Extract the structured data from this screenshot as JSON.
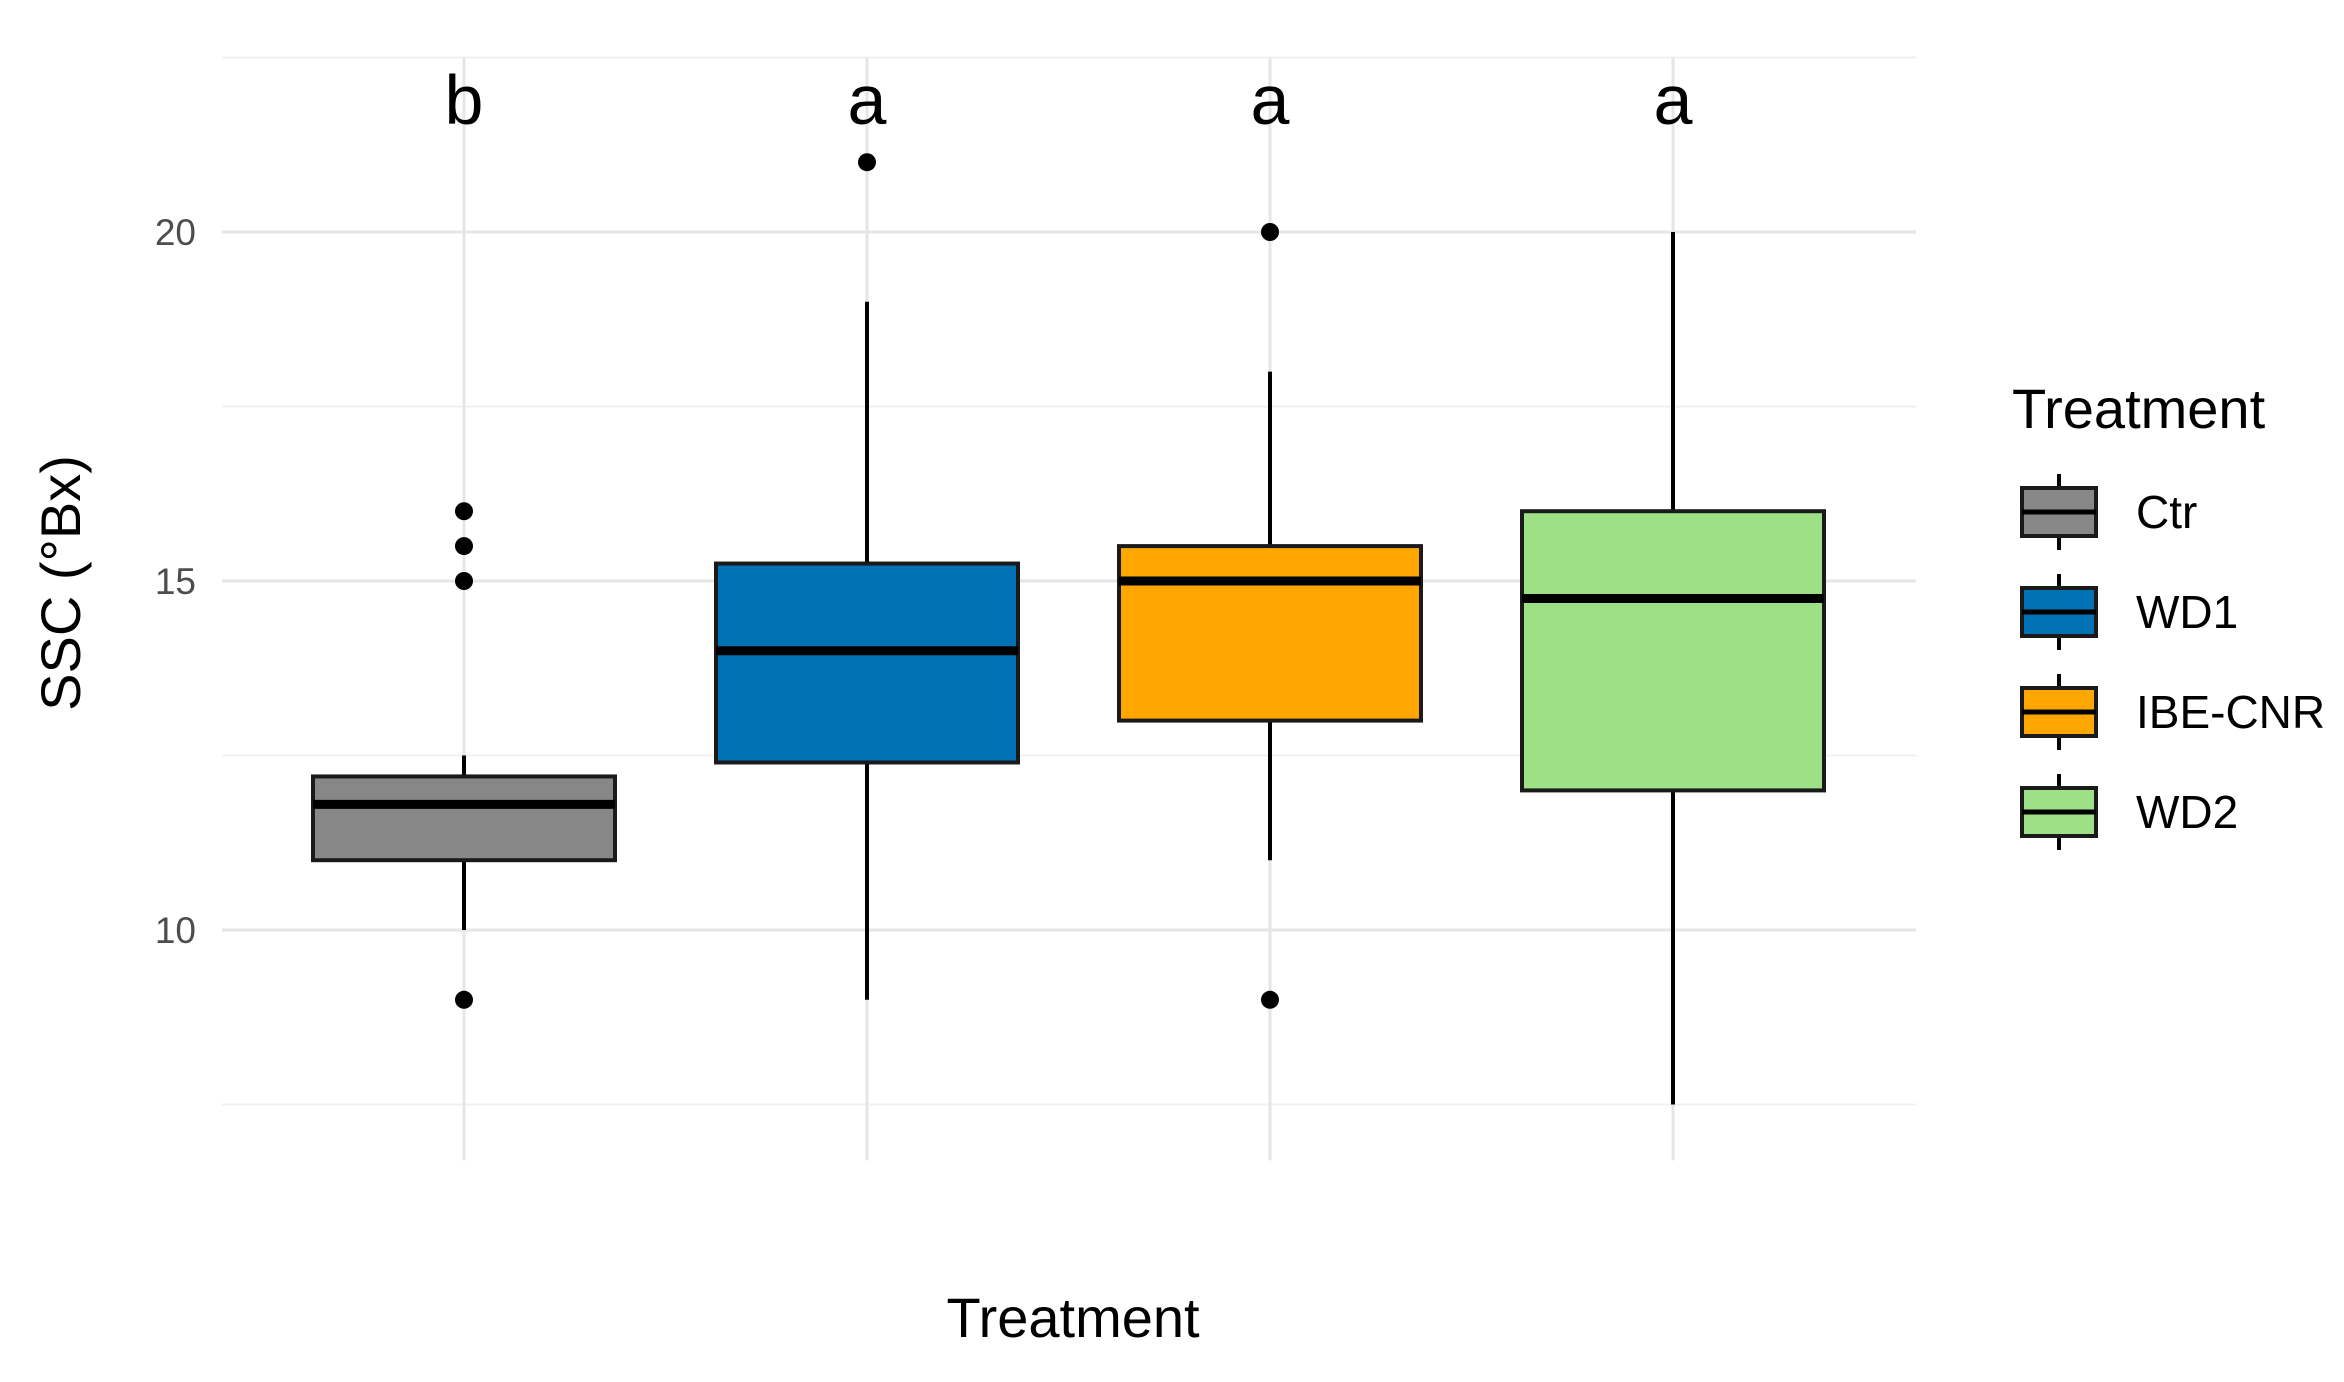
{
  "chart_data": {
    "type": "box",
    "xlabel": "Treatment",
    "ylabel": "SSC (°Bx)",
    "ylim": [
      7,
      22.5
    ],
    "yticks": [
      10,
      15,
      20
    ],
    "grid": true,
    "legend": {
      "title": "Treatment",
      "position": "right",
      "entries": [
        "Ctr",
        "WD1",
        "IBE-CNR",
        "WD2"
      ]
    },
    "categories": [
      "Ctr",
      "WD1",
      "IBE-CNR",
      "WD2"
    ],
    "series": [
      {
        "name": "Ctr",
        "color": "#878787",
        "q1": 11.0,
        "median": 11.8,
        "q3": 12.2,
        "whisker_low": 10.0,
        "whisker_high": 12.5,
        "outliers": [
          9.0,
          15.0,
          15.5,
          16.0
        ],
        "letter": "b"
      },
      {
        "name": "WD1",
        "color": "#0071b3",
        "q1": 12.4,
        "median": 14.0,
        "q3": 15.25,
        "whisker_low": 9.0,
        "whisker_high": 19.0,
        "outliers": [
          21.0
        ],
        "letter": "a"
      },
      {
        "name": "IBE-CNR",
        "color": "#ffa600",
        "q1": 13.0,
        "median": 15.0,
        "q3": 15.5,
        "whisker_low": 11.0,
        "whisker_high": 18.0,
        "outliers": [
          9.0,
          20.0
        ],
        "letter": "a"
      },
      {
        "name": "WD2",
        "color": "#9ee086",
        "q1": 12.0,
        "median": 14.75,
        "q3": 16.0,
        "whisker_low": 7.5,
        "whisker_high": 20.0,
        "outliers": [],
        "letter": "a"
      }
    ]
  }
}
